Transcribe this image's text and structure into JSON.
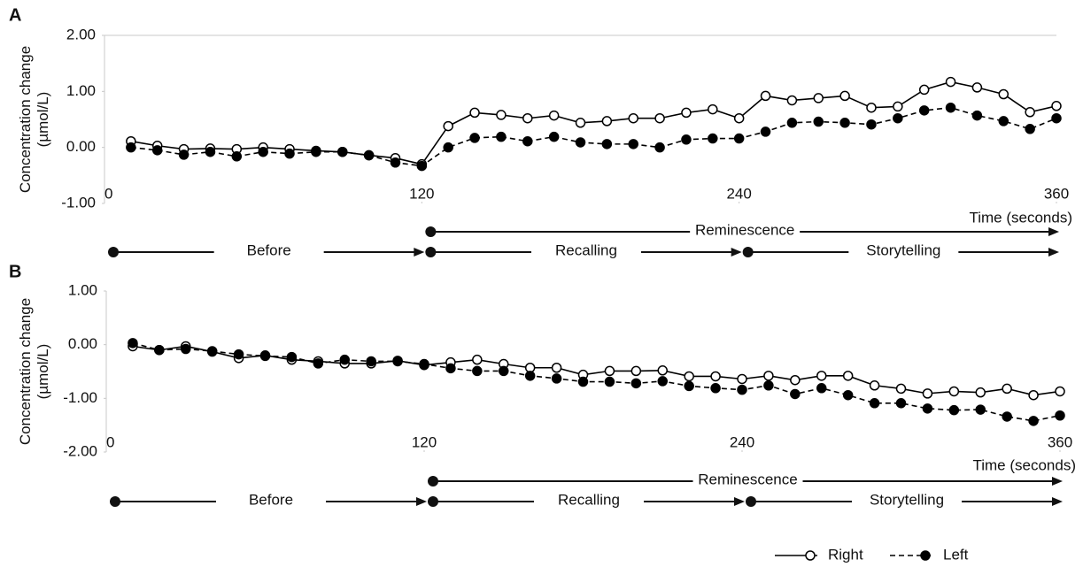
{
  "chart_data": [
    {
      "type": "line",
      "panel": "A",
      "ylabel": [
        "Concentration change",
        "(µmol/L)"
      ],
      "xlabel": "Time (seconds)",
      "x": [
        10,
        20,
        30,
        40,
        50,
        60,
        70,
        80,
        90,
        100,
        110,
        120,
        130,
        140,
        150,
        160,
        170,
        180,
        190,
        200,
        210,
        220,
        230,
        240,
        250,
        260,
        270,
        280,
        290,
        300,
        310,
        320,
        330,
        340,
        350,
        360
      ],
      "xlim": [
        0,
        360
      ],
      "xticks": [
        0,
        120,
        240,
        360
      ],
      "ylim": [
        -1,
        2
      ],
      "yticks": [
        {
          "value": -1,
          "label": "-1.00"
        },
        {
          "value": 0,
          "label": "0.00"
        },
        {
          "value": 1,
          "label": "1.00"
        },
        {
          "value": 2,
          "label": "2.00"
        }
      ],
      "series": [
        {
          "color": "#000000",
          "marker": "open",
          "dashed": false,
          "values": [
            0.11,
            0.03,
            -0.03,
            -0.02,
            -0.03,
            0.0,
            -0.03,
            -0.06,
            -0.08,
            -0.14,
            -0.19,
            -0.3,
            0.38,
            0.62,
            0.58,
            0.52,
            0.57,
            0.44,
            0.47,
            0.52,
            0.52,
            0.62,
            0.68,
            0.52,
            0.92,
            0.84,
            0.88,
            0.92,
            0.71,
            0.73,
            1.03,
            1.17,
            1.07,
            0.95,
            0.63,
            0.74
          ]
        },
        {
          "color": "#000000",
          "marker": "filled",
          "dashed": true,
          "values": [
            0.0,
            -0.05,
            -0.13,
            -0.08,
            -0.16,
            -0.08,
            -0.11,
            -0.08,
            -0.08,
            -0.14,
            -0.27,
            -0.33,
            0.0,
            0.17,
            0.19,
            0.11,
            0.19,
            0.09,
            0.06,
            0.06,
            0.0,
            0.14,
            0.16,
            0.16,
            0.28,
            0.44,
            0.46,
            0.44,
            0.41,
            0.52,
            0.66,
            0.71,
            0.57,
            0.47,
            0.33,
            0.52
          ]
        }
      ],
      "phases": [
        [
          {
            "label": "Reminescence",
            "from": 120,
            "to": 360
          }
        ],
        [
          {
            "label": "Before",
            "from": 0,
            "to": 120
          },
          {
            "label": "Recalling",
            "from": 120,
            "to": 240
          },
          {
            "label": "Storytelling",
            "from": 240,
            "to": 360
          }
        ]
      ]
    },
    {
      "type": "line",
      "panel": "B",
      "ylabel": [
        "Concentration change",
        "(µmol/L)"
      ],
      "xlabel": "Time (seconds)",
      "x": [
        10,
        20,
        30,
        40,
        50,
        60,
        70,
        80,
        90,
        100,
        110,
        120,
        130,
        140,
        150,
        160,
        170,
        180,
        190,
        200,
        210,
        220,
        230,
        240,
        250,
        260,
        270,
        280,
        290,
        300,
        310,
        320,
        330,
        340,
        350,
        360
      ],
      "xlim": [
        0,
        360
      ],
      "xticks": [
        0,
        120,
        240,
        360
      ],
      "ylim": [
        -2,
        1
      ],
      "yticks": [
        {
          "value": -2,
          "label": "-2.00"
        },
        {
          "value": -1,
          "label": "-1.00"
        },
        {
          "value": 0,
          "label": "0.00"
        },
        {
          "value": 1,
          "label": "1.00"
        }
      ],
      "series": [
        {
          "name": "Right",
          "color": "#000000",
          "marker": "open",
          "dashed": false,
          "values": [
            -0.03,
            -0.1,
            -0.03,
            -0.13,
            -0.25,
            -0.2,
            -0.28,
            -0.31,
            -0.35,
            -0.35,
            -0.3,
            -0.38,
            -0.33,
            -0.28,
            -0.36,
            -0.43,
            -0.43,
            -0.56,
            -0.49,
            -0.49,
            -0.48,
            -0.59,
            -0.59,
            -0.64,
            -0.58,
            -0.66,
            -0.58,
            -0.58,
            -0.76,
            -0.82,
            -0.91,
            -0.87,
            -0.89,
            -0.82,
            -0.94,
            -0.87
          ]
        },
        {
          "name": "Left",
          "color": "#000000",
          "marker": "filled",
          "dashed": true,
          "values": [
            0.03,
            -0.1,
            -0.08,
            -0.12,
            -0.18,
            -0.21,
            -0.23,
            -0.35,
            -0.28,
            -0.31,
            -0.31,
            -0.36,
            -0.44,
            -0.49,
            -0.49,
            -0.58,
            -0.63,
            -0.69,
            -0.69,
            -0.72,
            -0.68,
            -0.77,
            -0.81,
            -0.84,
            -0.76,
            -0.92,
            -0.81,
            -0.94,
            -1.09,
            -1.09,
            -1.19,
            -1.22,
            -1.21,
            -1.34,
            -1.42,
            -1.32
          ]
        }
      ],
      "phases": [
        [
          {
            "label": "Reminescence",
            "from": 120,
            "to": 360
          }
        ],
        [
          {
            "label": "Before",
            "from": 0,
            "to": 120
          },
          {
            "label": "Recalling",
            "from": 120,
            "to": 240
          },
          {
            "label": "Storytelling",
            "from": 240,
            "to": 360
          }
        ]
      ]
    }
  ]
}
